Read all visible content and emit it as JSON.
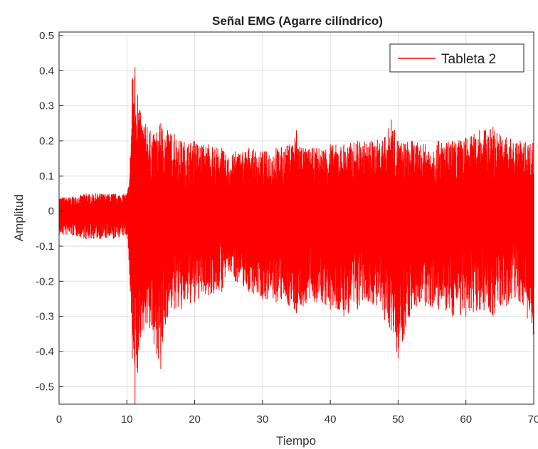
{
  "chart_data": {
    "type": "line",
    "title": "Señal EMG (Agarre cilíndrico)",
    "xlabel": "Tiempo",
    "ylabel": "Amplitud",
    "xlim": [
      0,
      70
    ],
    "ylim": [
      -0.55,
      0.51
    ],
    "x_ticks": [
      0,
      10,
      20,
      30,
      40,
      50,
      60,
      70
    ],
    "x_tick_labels": [
      "0",
      "10",
      "20",
      "30",
      "40",
      "50",
      "60",
      "70"
    ],
    "y_ticks": [
      0.5,
      0.4,
      0.3,
      0.2,
      0.1,
      0,
      -0.1,
      -0.2,
      -0.3,
      -0.4,
      -0.5
    ],
    "y_tick_labels": [
      "0.5",
      "0.4",
      "0.3",
      "0.2",
      "0.1",
      "0",
      "-0.1",
      "-0.2",
      "-0.3",
      "-0.4",
      "-0.5"
    ],
    "grid": true,
    "legend_position": "top-right",
    "series": [
      {
        "name": "Tableta 2",
        "color": "#ff0000",
        "envelope": {
          "x": [
            0,
            2,
            4,
            6,
            8,
            10,
            10.4,
            10.8,
            11.2,
            11.6,
            12,
            13,
            14,
            15,
            16,
            17,
            18,
            20,
            22,
            24,
            25,
            26,
            28,
            30,
            32,
            34,
            35,
            36,
            38,
            40,
            42,
            44,
            46,
            48,
            49,
            50,
            52,
            54,
            56,
            58,
            60,
            62,
            64,
            66,
            68,
            70
          ],
          "max": [
            0.04,
            0.04,
            0.05,
            0.05,
            0.05,
            0.05,
            0.09,
            0.38,
            0.41,
            0.33,
            0.28,
            0.24,
            0.22,
            0.25,
            0.23,
            0.22,
            0.2,
            0.2,
            0.19,
            0.18,
            0.15,
            0.17,
            0.18,
            0.17,
            0.18,
            0.19,
            0.23,
            0.18,
            0.18,
            0.19,
            0.19,
            0.2,
            0.2,
            0.21,
            0.26,
            0.2,
            0.2,
            0.19,
            0.2,
            0.2,
            0.21,
            0.23,
            0.24,
            0.21,
            0.2,
            0.2
          ],
          "min": [
            -0.07,
            -0.07,
            -0.08,
            -0.08,
            -0.08,
            -0.07,
            -0.18,
            -0.42,
            -0.55,
            -0.46,
            -0.36,
            -0.32,
            -0.38,
            -0.45,
            -0.3,
            -0.28,
            -0.28,
            -0.26,
            -0.24,
            -0.23,
            -0.17,
            -0.2,
            -0.23,
            -0.25,
            -0.26,
            -0.27,
            -0.29,
            -0.27,
            -0.26,
            -0.28,
            -0.3,
            -0.28,
            -0.26,
            -0.31,
            -0.34,
            -0.42,
            -0.28,
            -0.27,
            -0.28,
            -0.3,
            -0.3,
            -0.28,
            -0.3,
            -0.27,
            -0.26,
            -0.36
          ]
        }
      }
    ]
  }
}
